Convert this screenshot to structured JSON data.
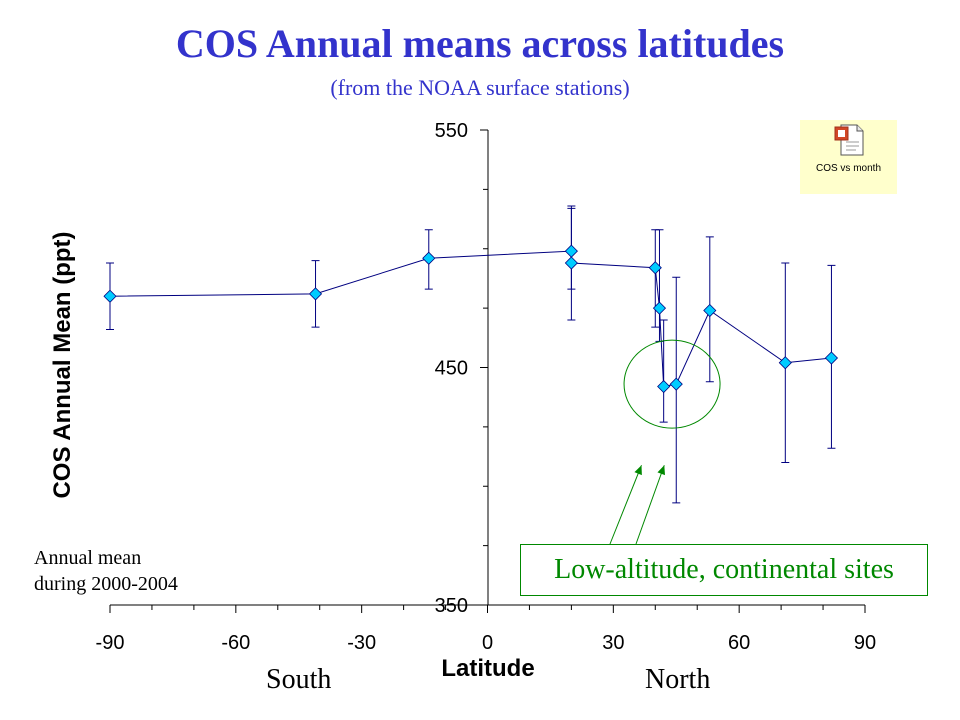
{
  "slide": {
    "title": "COS Annual means across latitudes",
    "subtitle": "(from the NOAA surface stations)",
    "region_south": "South",
    "region_north": "North",
    "note_line1": "Annual mean",
    "note_line2": "during 2000-2004",
    "callout": "Low-altitude, continental sites",
    "embedded_object_label": "COS vs month",
    "embedded_object_icon": "document-icon"
  },
  "colors": {
    "title": "#3333cc",
    "series_line": "#000080",
    "marker": "#00ccff",
    "annotation": "#008800",
    "embed_bg": "#ffffcc"
  },
  "chart_data": {
    "type": "scatter",
    "title": "COS Annual means across latitudes",
    "subtitle": "(from the NOAA surface stations)",
    "xlabel": "Latitude",
    "ylabel": "COS Annual Mean (ppt)",
    "xlim": [
      -90,
      90
    ],
    "ylim": [
      350,
      550
    ],
    "x_ticks": [
      -90,
      -60,
      -30,
      0,
      30,
      60,
      90
    ],
    "y_ticks": [
      350,
      450,
      550
    ],
    "grid": false,
    "legend": "none",
    "series": [
      {
        "x": [
          -90,
          -41,
          -14,
          20,
          20,
          40,
          41,
          42,
          45,
          53,
          71,
          82
        ],
        "y": [
          480,
          481,
          496,
          499,
          494,
          492,
          475,
          442,
          443,
          474,
          452,
          454
        ],
        "y_err_low": [
          14,
          14,
          13,
          16,
          24,
          25,
          14,
          15,
          50,
          30,
          42,
          38
        ],
        "y_err_high": [
          14,
          14,
          12,
          18,
          24,
          16,
          33,
          28,
          45,
          31,
          42,
          39
        ]
      }
    ],
    "annotations": [
      {
        "type": "ellipse",
        "center": [
          44,
          443
        ],
        "label": "Low-altitude, continental sites"
      },
      {
        "type": "arrows",
        "label": "Low-altitude, continental sites",
        "targets": [
          [
            36,
            408
          ],
          [
            40,
            408
          ]
        ]
      }
    ]
  }
}
